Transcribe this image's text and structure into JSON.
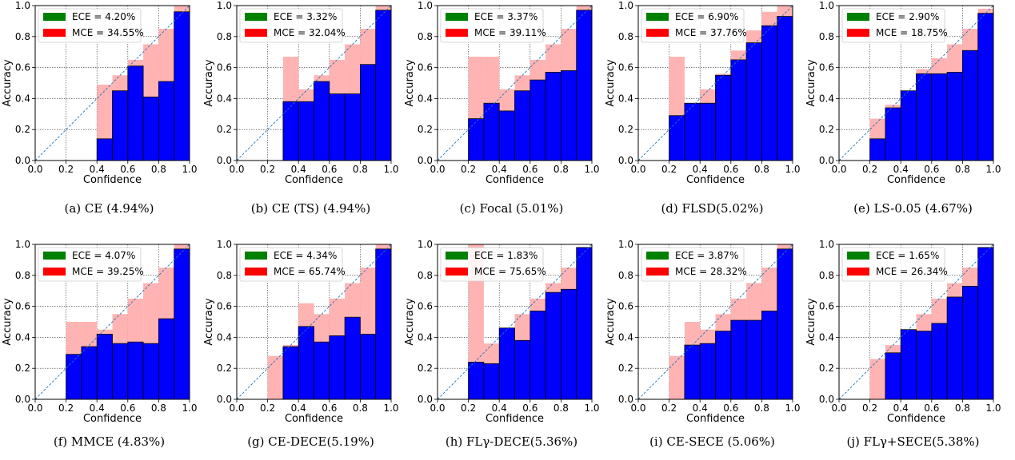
{
  "chart_data": [
    {
      "type": "bar",
      "label": "(a)",
      "caption": "CE (4.94%)",
      "xlabel": "Confidence",
      "ylabel": "Accuracy",
      "xlim": [
        0,
        1
      ],
      "ylim": [
        0,
        1
      ],
      "xticks": [
        "0.0",
        "0.2",
        "0.4",
        "0.6",
        "0.8",
        "1.0"
      ],
      "yticks": [
        "0.0",
        "0.2",
        "0.4",
        "0.6",
        "0.8",
        "1.0"
      ],
      "bins": [
        0.05,
        0.15,
        0.25,
        0.35,
        0.45,
        0.55,
        0.65,
        0.75,
        0.85,
        0.95
      ],
      "accuracy": [
        null,
        null,
        null,
        null,
        0.14,
        0.45,
        0.61,
        0.41,
        0.51,
        0.96
      ],
      "gap_top": [
        null,
        null,
        null,
        null,
        0.49,
        0.55,
        0.65,
        0.75,
        0.85,
        1.0
      ],
      "legend": {
        "placement": "top-left",
        "ece_label": "ECE = 4.20%",
        "mce_label": "MCE = 34.55%"
      },
      "grid": true,
      "diagonal": true,
      "colors": {
        "accuracy": "#0000ff",
        "gap": "#ffb3b3",
        "ece": "#008000",
        "mce": "#ff0000"
      }
    },
    {
      "type": "bar",
      "label": "(b)",
      "caption": "CE (TS) (4.94%)",
      "xlabel": "Confidence",
      "ylabel": "Accuracy",
      "xlim": [
        0,
        1
      ],
      "ylim": [
        0,
        1
      ],
      "xticks": [
        "0.0",
        "0.2",
        "0.4",
        "0.6",
        "0.8",
        "1.0"
      ],
      "yticks": [
        "0.0",
        "0.2",
        "0.4",
        "0.6",
        "0.8",
        "1.0"
      ],
      "bins": [
        0.05,
        0.15,
        0.25,
        0.35,
        0.45,
        0.55,
        0.65,
        0.75,
        0.85,
        0.95
      ],
      "accuracy": [
        null,
        null,
        null,
        0.38,
        0.38,
        0.51,
        0.43,
        0.43,
        0.62,
        0.97
      ],
      "gap_top": [
        null,
        null,
        null,
        0.67,
        0.46,
        0.55,
        0.65,
        0.75,
        0.85,
        1.0
      ],
      "legend": {
        "placement": "top-left",
        "ece_label": "ECE = 3.32%",
        "mce_label": "MCE = 32.04%"
      },
      "grid": true,
      "diagonal": true,
      "colors": {
        "accuracy": "#0000ff",
        "gap": "#ffb3b3",
        "ece": "#008000",
        "mce": "#ff0000"
      }
    },
    {
      "type": "bar",
      "label": "(c)",
      "caption": "Focal (5.01%)",
      "xlabel": "Confidence",
      "ylabel": "Accuracy",
      "xlim": [
        0,
        1
      ],
      "ylim": [
        0,
        1
      ],
      "xticks": [
        "0.0",
        "0.2",
        "0.4",
        "0.6",
        "0.8",
        "1.0"
      ],
      "yticks": [
        "0.0",
        "0.2",
        "0.4",
        "0.6",
        "0.8",
        "1.0"
      ],
      "bins": [
        0.05,
        0.15,
        0.25,
        0.35,
        0.45,
        0.55,
        0.65,
        0.75,
        0.85,
        0.95
      ],
      "accuracy": [
        null,
        null,
        0.27,
        0.37,
        0.32,
        0.45,
        0.52,
        0.57,
        0.58,
        0.97
      ],
      "gap_top": [
        null,
        null,
        0.67,
        0.67,
        0.46,
        0.55,
        0.65,
        0.75,
        0.85,
        1.0
      ],
      "legend": {
        "placement": "top-left",
        "ece_label": "ECE = 3.37%",
        "mce_label": "MCE = 39.11%"
      },
      "grid": true,
      "diagonal": true,
      "colors": {
        "accuracy": "#0000ff",
        "gap": "#ffb3b3",
        "ece": "#008000",
        "mce": "#ff0000"
      }
    },
    {
      "type": "bar",
      "label": "(d)",
      "caption": "FLSD(5.02%)",
      "xlabel": "Confidence",
      "ylabel": "Accuracy",
      "xlim": [
        0,
        1
      ],
      "ylim": [
        0,
        1
      ],
      "xticks": [
        "0.0",
        "0.2",
        "0.4",
        "0.6",
        "0.8",
        "1.0"
      ],
      "yticks": [
        "0.0",
        "0.2",
        "0.4",
        "0.6",
        "0.8",
        "1.0"
      ],
      "bins": [
        0.05,
        0.15,
        0.25,
        0.35,
        0.45,
        0.55,
        0.65,
        0.75,
        0.85,
        0.95
      ],
      "accuracy": [
        null,
        null,
        0.29,
        0.37,
        0.37,
        0.55,
        0.65,
        0.76,
        0.87,
        0.93
      ],
      "gap_top": [
        null,
        null,
        0.67,
        0.36,
        0.46,
        0.56,
        0.71,
        0.84,
        0.96,
        1.0
      ],
      "legend": {
        "placement": "top-left",
        "ece_label": "ECE = 6.90%",
        "mce_label": "MCE = 37.76%"
      },
      "grid": true,
      "diagonal": true,
      "colors": {
        "accuracy": "#0000ff",
        "gap": "#ffb3b3",
        "ece": "#008000",
        "mce": "#ff0000"
      }
    },
    {
      "type": "bar",
      "label": "(e)",
      "caption": "LS-0.05 (4.67%)",
      "xlabel": "Confidence",
      "ylabel": "Accuracy",
      "xlim": [
        0,
        1
      ],
      "ylim": [
        0,
        1
      ],
      "xticks": [
        "0.0",
        "0.2",
        "0.4",
        "0.6",
        "0.8",
        "1.0"
      ],
      "yticks": [
        "0.0",
        "0.2",
        "0.4",
        "0.6",
        "0.8",
        "1.0"
      ],
      "bins": [
        0.05,
        0.15,
        0.25,
        0.35,
        0.45,
        0.55,
        0.65,
        0.75,
        0.85,
        0.95
      ],
      "accuracy": [
        null,
        null,
        0.14,
        0.34,
        0.45,
        0.56,
        0.56,
        0.57,
        0.71,
        0.95
      ],
      "gap_top": [
        null,
        null,
        0.27,
        0.36,
        0.45,
        0.59,
        0.66,
        0.75,
        0.85,
        0.98
      ],
      "legend": {
        "placement": "top-left",
        "ece_label": "ECE = 2.90%",
        "mce_label": "MCE = 18.75%"
      },
      "grid": true,
      "diagonal": true,
      "colors": {
        "accuracy": "#0000ff",
        "gap": "#ffb3b3",
        "ece": "#008000",
        "mce": "#ff0000"
      }
    },
    {
      "type": "bar",
      "label": "(f)",
      "caption": "MMCE (4.83%)",
      "xlabel": "Confidence",
      "ylabel": "Accuracy",
      "xlim": [
        0,
        1
      ],
      "ylim": [
        0,
        1
      ],
      "xticks": [
        "0.0",
        "0.2",
        "0.4",
        "0.6",
        "0.8",
        "1.0"
      ],
      "yticks": [
        "0.0",
        "0.2",
        "0.4",
        "0.6",
        "0.8",
        "1.0"
      ],
      "bins": [
        0.05,
        0.15,
        0.25,
        0.35,
        0.45,
        0.55,
        0.65,
        0.75,
        0.85,
        0.95
      ],
      "accuracy": [
        null,
        null,
        0.29,
        0.34,
        0.42,
        0.36,
        0.37,
        0.36,
        0.52,
        0.97
      ],
      "gap_top": [
        null,
        null,
        0.5,
        0.5,
        0.45,
        0.55,
        0.65,
        0.75,
        0.85,
        1.0
      ],
      "legend": {
        "placement": "top-left",
        "ece_label": "ECE = 4.07%",
        "mce_label": "MCE = 39.25%"
      },
      "grid": true,
      "diagonal": true,
      "colors": {
        "accuracy": "#0000ff",
        "gap": "#ffb3b3",
        "ece": "#008000",
        "mce": "#ff0000"
      }
    },
    {
      "type": "bar",
      "label": "(g)",
      "caption": "CE-DECE(5.19%)",
      "xlabel": "Confidence",
      "ylabel": "Accuracy",
      "xlim": [
        0,
        1
      ],
      "ylim": [
        0,
        1
      ],
      "xticks": [
        "0.0",
        "0.2",
        "0.4",
        "0.6",
        "0.8",
        "1.0"
      ],
      "yticks": [
        "0.0",
        "0.2",
        "0.4",
        "0.6",
        "0.8",
        "1.0"
      ],
      "bins": [
        0.05,
        0.15,
        0.25,
        0.35,
        0.45,
        0.55,
        0.65,
        0.75,
        0.85,
        0.95
      ],
      "accuracy": [
        null,
        null,
        0.0,
        0.34,
        0.47,
        0.37,
        0.41,
        0.53,
        0.42,
        0.97
      ],
      "gap_top": [
        null,
        null,
        0.28,
        0.35,
        0.62,
        0.55,
        0.65,
        0.75,
        0.85,
        1.0
      ],
      "legend": {
        "placement": "top-left",
        "ece_label": "ECE = 4.34%",
        "mce_label": "MCE = 65.74%"
      },
      "grid": true,
      "diagonal": true,
      "colors": {
        "accuracy": "#0000ff",
        "gap": "#ffb3b3",
        "ece": "#008000",
        "mce": "#ff0000"
      }
    },
    {
      "type": "bar",
      "label": "(h)",
      "caption": "FLγ-DECE(5.36%)",
      "xlabel": "Confidence",
      "ylabel": "Accuracy",
      "xlim": [
        0,
        1
      ],
      "ylim": [
        0,
        1
      ],
      "xticks": [
        "0.0",
        "0.2",
        "0.4",
        "0.6",
        "0.8",
        "1.0"
      ],
      "yticks": [
        "0.0",
        "0.2",
        "0.4",
        "0.6",
        "0.8",
        "1.0"
      ],
      "bins": [
        0.05,
        0.15,
        0.25,
        0.35,
        0.45,
        0.55,
        0.65,
        0.75,
        0.85,
        0.95
      ],
      "accuracy": [
        null,
        null,
        0.24,
        0.23,
        0.46,
        0.38,
        0.57,
        0.69,
        0.71,
        0.98
      ],
      "gap_top": [
        null,
        null,
        1.0,
        0.36,
        0.45,
        0.55,
        0.65,
        0.75,
        0.85,
        0.98
      ],
      "legend": {
        "placement": "top-left",
        "ece_label": "ECE = 1.83%",
        "mce_label": "MCE = 75.65%"
      },
      "grid": true,
      "diagonal": true,
      "colors": {
        "accuracy": "#0000ff",
        "gap": "#ffb3b3",
        "ece": "#008000",
        "mce": "#ff0000"
      }
    },
    {
      "type": "bar",
      "label": "(i)",
      "caption": "CE-SECE (5.06%)",
      "xlabel": "Confidence",
      "ylabel": "Accuracy",
      "xlim": [
        0,
        1
      ],
      "ylim": [
        0,
        1
      ],
      "xticks": [
        "0.0",
        "0.2",
        "0.4",
        "0.6",
        "0.8",
        "1.0"
      ],
      "yticks": [
        "0.0",
        "0.2",
        "0.4",
        "0.6",
        "0.8",
        "1.0"
      ],
      "bins": [
        0.05,
        0.15,
        0.25,
        0.35,
        0.45,
        0.55,
        0.65,
        0.75,
        0.85,
        0.95
      ],
      "accuracy": [
        null,
        null,
        0.0,
        0.35,
        0.36,
        0.44,
        0.51,
        0.51,
        0.57,
        0.97
      ],
      "gap_top": [
        null,
        null,
        0.28,
        0.5,
        0.45,
        0.55,
        0.65,
        0.75,
        0.85,
        1.0
      ],
      "legend": {
        "placement": "top-left",
        "ece_label": "ECE = 3.87%",
        "mce_label": "MCE = 28.32%"
      },
      "grid": true,
      "diagonal": true,
      "colors": {
        "accuracy": "#0000ff",
        "gap": "#ffb3b3",
        "ece": "#008000",
        "mce": "#ff0000"
      }
    },
    {
      "type": "bar",
      "label": "(j)",
      "caption": "FLγ+SECE(5.38%)",
      "xlabel": "Confidence",
      "ylabel": "Accuracy",
      "xlim": [
        0,
        1
      ],
      "ylim": [
        0,
        1
      ],
      "xticks": [
        "0.0",
        "0.2",
        "0.4",
        "0.6",
        "0.8",
        "1.0"
      ],
      "yticks": [
        "0.0",
        "0.2",
        "0.4",
        "0.6",
        "0.8",
        "1.0"
      ],
      "bins": [
        0.05,
        0.15,
        0.25,
        0.35,
        0.45,
        0.55,
        0.65,
        0.75,
        0.85,
        0.95
      ],
      "accuracy": [
        null,
        null,
        0.0,
        0.3,
        0.45,
        0.44,
        0.49,
        0.66,
        0.73,
        0.98
      ],
      "gap_top": [
        null,
        null,
        0.26,
        0.35,
        0.45,
        0.55,
        0.65,
        0.75,
        0.85,
        0.98
      ],
      "legend": {
        "placement": "top-left",
        "ece_label": "ECE = 1.65%",
        "mce_label": "MCE = 26.34%"
      },
      "grid": true,
      "diagonal": true,
      "colors": {
        "accuracy": "#0000ff",
        "gap": "#ffb3b3",
        "ece": "#008000",
        "mce": "#ff0000"
      }
    }
  ]
}
